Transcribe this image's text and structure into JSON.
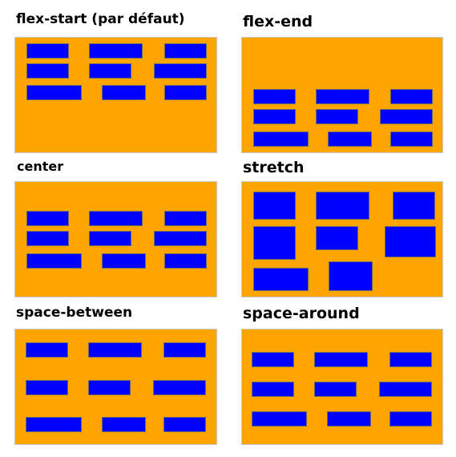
{
  "colors": {
    "container": "#ffa500",
    "item": "#0000ff"
  },
  "panels": [
    {
      "title": "flex-start (par défaut)",
      "item_count": 9
    },
    {
      "title": "flex-end",
      "item_count": 9
    },
    {
      "title": "center",
      "item_count": 9
    },
    {
      "title": "stretch",
      "item_count": 8
    },
    {
      "title": "space-between",
      "item_count": 9
    },
    {
      "title": "space-around",
      "item_count": 9
    }
  ]
}
